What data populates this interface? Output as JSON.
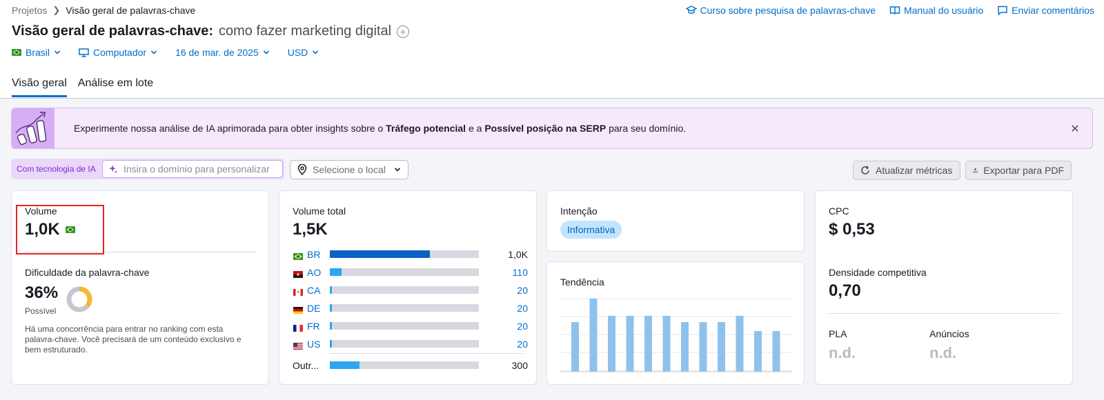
{
  "breadcrumb": {
    "root": "Projetos",
    "current": "Visão geral de palavras-chave"
  },
  "header_links": [
    {
      "label": "Curso sobre pesquisa de palavras-chave",
      "icon": "graduation-cap-icon"
    },
    {
      "label": "Manual do usuário",
      "icon": "book-icon"
    },
    {
      "label": "Enviar comentários",
      "icon": "chat-icon"
    }
  ],
  "title": {
    "main": "Visão geral de palavras-chave:",
    "keyword": "como fazer marketing digital"
  },
  "filters": {
    "country": "Brasil",
    "device": "Computador",
    "date": "16 de mar. de 2025",
    "currency": "USD"
  },
  "tabs": [
    {
      "label": "Visão geral",
      "active": true
    },
    {
      "label": "Análise em lote",
      "active": false
    }
  ],
  "banner": {
    "text_before": "Experimente nossa análise de IA aprimorada para obter insights sobre o",
    "bold1": "Tráfego potencial",
    "text_mid": "e a",
    "bold2": "Possível posição na SERP",
    "text_after": "para seu domínio."
  },
  "ai": {
    "label": "Com tecnologia de IA",
    "domain_placeholder": "Insira o domínio para personalizar",
    "location_placeholder": "Selecione o local"
  },
  "actions": {
    "refresh": "Atualizar métricas",
    "export": "Exportar para PDF"
  },
  "volume": {
    "label": "Volume",
    "value": "1,0K"
  },
  "difficulty": {
    "label": "Dificuldade da palavra-chave",
    "value": "36%",
    "level": "Possível",
    "percent": 36,
    "description": "Há uma concorrência para entrar no ranking com esta palavra-chave. Você precisará de um conteúdo exclusivo e bem estruturado."
  },
  "total_volume": {
    "label": "Volume total",
    "value": "1,5K",
    "rows": [
      {
        "code": "BR",
        "value": "1,0K",
        "share": 0.67,
        "primary": true
      },
      {
        "code": "AO",
        "value": "110",
        "share": 0.08
      },
      {
        "code": "CA",
        "value": "20",
        "share": 0.015
      },
      {
        "code": "DE",
        "value": "20",
        "share": 0.015
      },
      {
        "code": "FR",
        "value": "20",
        "share": 0.015
      },
      {
        "code": "US",
        "value": "20",
        "share": 0.015
      }
    ],
    "others": {
      "label": "Outr...",
      "value": "300",
      "share": 0.2
    }
  },
  "intent": {
    "label": "Intenção",
    "value": "Informativa"
  },
  "trend": {
    "label": "Tendência",
    "values": [
      0.68,
      1.0,
      0.76,
      0.76,
      0.76,
      0.76,
      0.68,
      0.68,
      0.68,
      0.76,
      0.56,
      0.56
    ]
  },
  "cpc": {
    "label": "CPC",
    "value": "$ 0,53"
  },
  "density": {
    "label": "Densidade competitiva",
    "value": "0,70"
  },
  "pla": {
    "label": "PLA",
    "value": "n.d."
  },
  "ads": {
    "label": "Anúncios",
    "value": "n.d."
  },
  "colors": {
    "accent": "#006dca",
    "bar_primary": "#0b62c4",
    "bar_secondary": "#2fa4f0",
    "trend_bar": "#8ec2ec",
    "difficulty_fill": "#f5b934",
    "difficulty_track": "#c4c7cf"
  }
}
